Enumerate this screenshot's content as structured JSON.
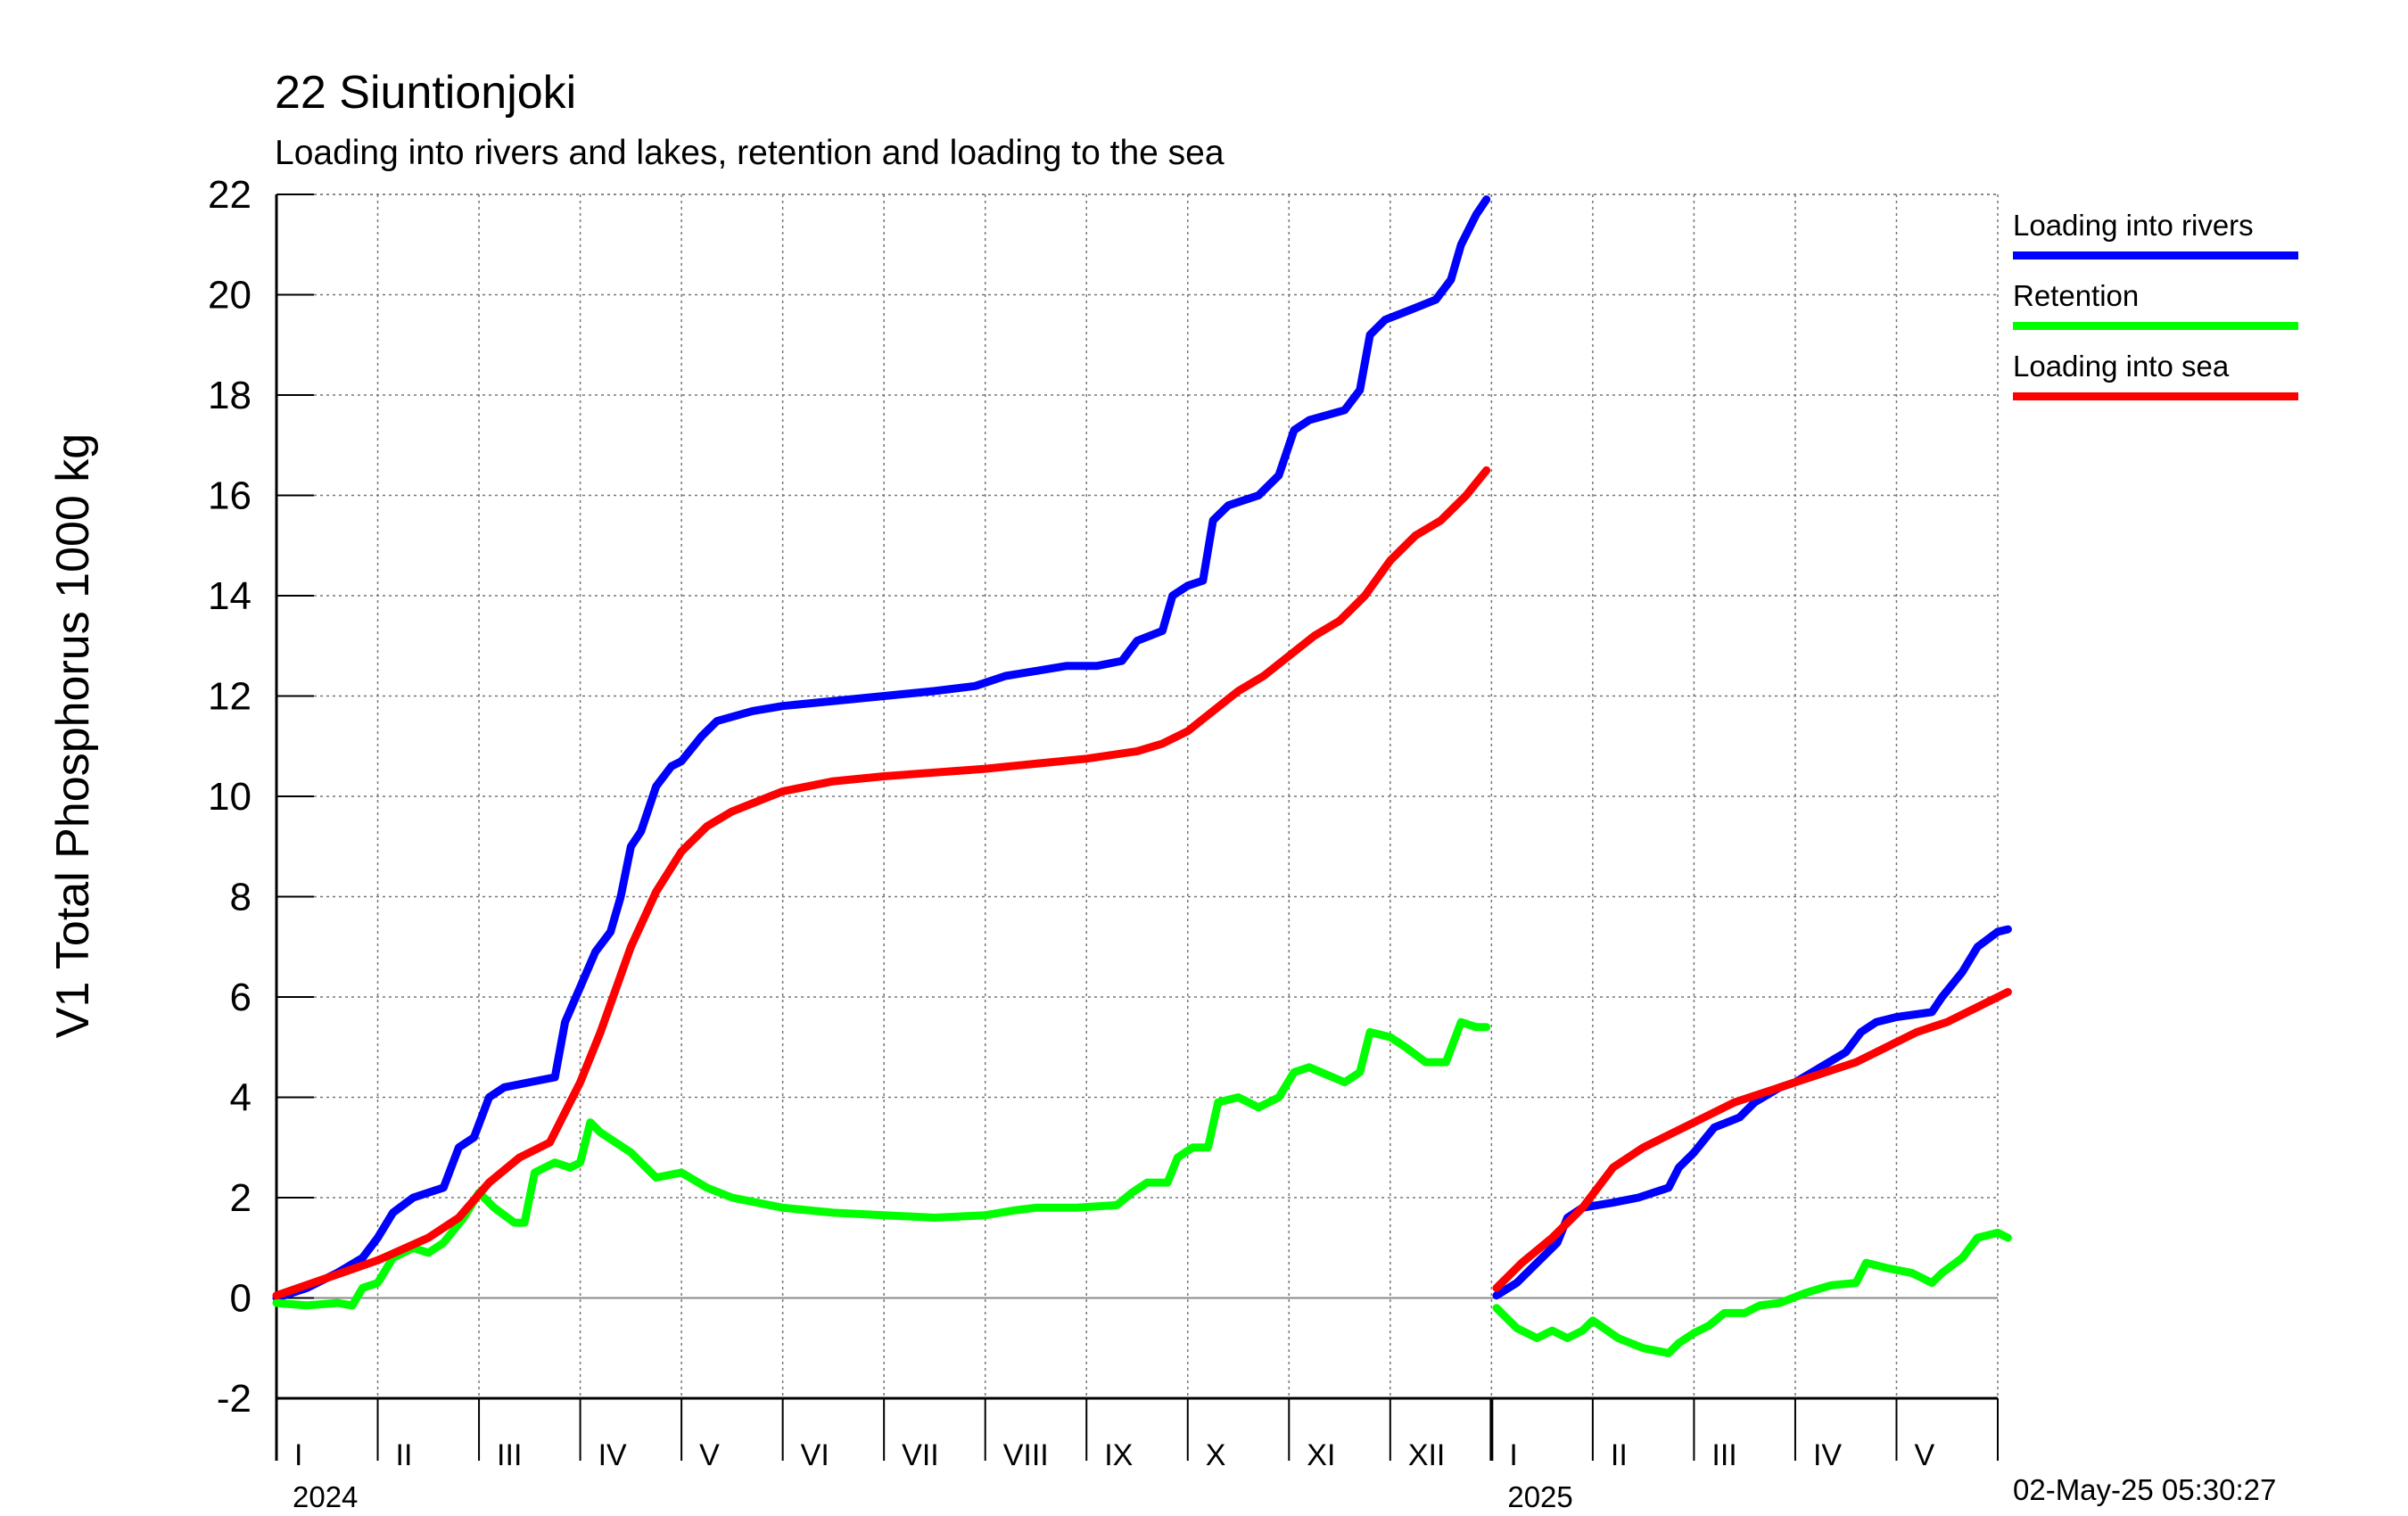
{
  "title": "22 Siuntionjoki",
  "subtitle": "Loading into rivers and lakes, retention and loading to the sea",
  "timestamp": "02-May-25 05:30:27",
  "chart_data": {
    "type": "line",
    "ylabel": "V1 Total Phosphorus 1000 kg",
    "ylim": [
      -2,
      22
    ],
    "yticks": [
      -2,
      0,
      2,
      4,
      6,
      8,
      10,
      12,
      14,
      16,
      18,
      20,
      22
    ],
    "grid": true,
    "legend_position": "right",
    "months": [
      "I",
      "II",
      "III",
      "IV",
      "V",
      "VI",
      "VII",
      "VIII",
      "IX",
      "X",
      "XI",
      "XII",
      "I",
      "II",
      "III",
      "IV",
      "V"
    ],
    "years": [
      {
        "label": "2024",
        "start_month": 0
      },
      {
        "label": "2025",
        "start_month": 12
      }
    ],
    "x_unit": "months since 2024-01-01",
    "series": [
      {
        "name": "Loading into rivers",
        "color": "#0000ff",
        "segments": [
          [
            [
              0,
              0
            ],
            [
              0.3,
              0.2
            ],
            [
              0.6,
              0.5
            ],
            [
              0.85,
              0.8
            ],
            [
              1.0,
              1.2
            ],
            [
              1.15,
              1.7
            ],
            [
              1.35,
              2.0
            ],
            [
              1.5,
              2.1
            ],
            [
              1.65,
              2.2
            ],
            [
              1.8,
              3.0
            ],
            [
              1.95,
              3.2
            ],
            [
              2.1,
              4.0
            ],
            [
              2.25,
              4.2
            ],
            [
              2.5,
              4.3
            ],
            [
              2.75,
              4.4
            ],
            [
              2.85,
              5.5
            ],
            [
              3.0,
              6.2
            ],
            [
              3.15,
              6.9
            ],
            [
              3.3,
              7.3
            ],
            [
              3.4,
              8.0
            ],
            [
              3.5,
              9.0
            ],
            [
              3.6,
              9.3
            ],
            [
              3.75,
              10.2
            ],
            [
              3.9,
              10.6
            ],
            [
              4.0,
              10.7
            ],
            [
              4.2,
              11.2
            ],
            [
              4.35,
              11.5
            ],
            [
              4.7,
              11.7
            ],
            [
              5.0,
              11.8
            ],
            [
              5.5,
              11.9
            ],
            [
              6.0,
              12.0
            ],
            [
              6.5,
              12.1
            ],
            [
              6.9,
              12.2
            ],
            [
              7.2,
              12.4
            ],
            [
              7.5,
              12.5
            ],
            [
              7.8,
              12.6
            ],
            [
              8.1,
              12.6
            ],
            [
              8.35,
              12.7
            ],
            [
              8.5,
              13.1
            ],
            [
              8.75,
              13.3
            ],
            [
              8.85,
              14.0
            ],
            [
              9.0,
              14.2
            ],
            [
              9.15,
              14.3
            ],
            [
              9.25,
              15.5
            ],
            [
              9.4,
              15.8
            ],
            [
              9.7,
              16.0
            ],
            [
              9.9,
              16.4
            ],
            [
              10.05,
              17.3
            ],
            [
              10.2,
              17.5
            ],
            [
              10.55,
              17.7
            ],
            [
              10.7,
              18.1
            ],
            [
              10.8,
              19.2
            ],
            [
              10.95,
              19.5
            ],
            [
              11.2,
              19.7
            ],
            [
              11.45,
              19.9
            ],
            [
              11.6,
              20.3
            ],
            [
              11.7,
              21.0
            ],
            [
              11.85,
              21.6
            ],
            [
              11.95,
              21.9
            ]
          ],
          [
            [
              12.05,
              0.05
            ],
            [
              12.25,
              0.3
            ],
            [
              12.45,
              0.7
            ],
            [
              12.65,
              1.1
            ],
            [
              12.75,
              1.6
            ],
            [
              12.9,
              1.8
            ],
            [
              13.2,
              1.9
            ],
            [
              13.45,
              2.0
            ],
            [
              13.75,
              2.2
            ],
            [
              13.85,
              2.6
            ],
            [
              14.0,
              2.9
            ],
            [
              14.2,
              3.4
            ],
            [
              14.45,
              3.6
            ],
            [
              14.6,
              3.9
            ],
            [
              14.85,
              4.2
            ],
            [
              15.0,
              4.3
            ],
            [
              15.25,
              4.6
            ],
            [
              15.5,
              4.9
            ],
            [
              15.65,
              5.3
            ],
            [
              15.8,
              5.5
            ],
            [
              16.0,
              5.6
            ],
            [
              16.35,
              5.7
            ],
            [
              16.45,
              6.0
            ],
            [
              16.65,
              6.5
            ],
            [
              16.8,
              7.0
            ],
            [
              17.0,
              7.3
            ],
            [
              17.1,
              7.35
            ]
          ]
        ]
      },
      {
        "name": "Retention",
        "color": "#00ff00",
        "segments": [
          [
            [
              0,
              -0.1
            ],
            [
              0.3,
              -0.15
            ],
            [
              0.6,
              -0.1
            ],
            [
              0.75,
              -0.15
            ],
            [
              0.85,
              0.2
            ],
            [
              1.0,
              0.3
            ],
            [
              1.15,
              0.8
            ],
            [
              1.35,
              1.0
            ],
            [
              1.5,
              0.9
            ],
            [
              1.65,
              1.1
            ],
            [
              1.85,
              1.6
            ],
            [
              2.0,
              2.1
            ],
            [
              2.15,
              1.8
            ],
            [
              2.35,
              1.5
            ],
            [
              2.45,
              1.5
            ],
            [
              2.55,
              2.5
            ],
            [
              2.75,
              2.7
            ],
            [
              2.9,
              2.6
            ],
            [
              3.0,
              2.7
            ],
            [
              3.1,
              3.5
            ],
            [
              3.2,
              3.3
            ],
            [
              3.5,
              2.9
            ],
            [
              3.75,
              2.4
            ],
            [
              4.0,
              2.5
            ],
            [
              4.25,
              2.2
            ],
            [
              4.5,
              2.0
            ],
            [
              5.0,
              1.8
            ],
            [
              5.5,
              1.7
            ],
            [
              6.0,
              1.65
            ],
            [
              6.5,
              1.6
            ],
            [
              7.0,
              1.65
            ],
            [
              7.3,
              1.75
            ],
            [
              7.5,
              1.8
            ],
            [
              7.9,
              1.8
            ],
            [
              8.3,
              1.85
            ],
            [
              8.45,
              2.1
            ],
            [
              8.6,
              2.3
            ],
            [
              8.8,
              2.3
            ],
            [
              8.9,
              2.8
            ],
            [
              9.05,
              3.0
            ],
            [
              9.2,
              3.0
            ],
            [
              9.3,
              3.9
            ],
            [
              9.5,
              4.0
            ],
            [
              9.7,
              3.8
            ],
            [
              9.9,
              4.0
            ],
            [
              10.05,
              4.5
            ],
            [
              10.2,
              4.6
            ],
            [
              10.55,
              4.3
            ],
            [
              10.7,
              4.5
            ],
            [
              10.8,
              5.3
            ],
            [
              11.0,
              5.2
            ],
            [
              11.15,
              5.0
            ],
            [
              11.35,
              4.7
            ],
            [
              11.55,
              4.7
            ],
            [
              11.7,
              5.5
            ],
            [
              11.85,
              5.4
            ],
            [
              11.95,
              5.4
            ]
          ],
          [
            [
              12.05,
              -0.2
            ],
            [
              12.25,
              -0.6
            ],
            [
              12.45,
              -0.8
            ],
            [
              12.6,
              -0.65
            ],
            [
              12.75,
              -0.8
            ],
            [
              12.9,
              -0.65
            ],
            [
              13.0,
              -0.45
            ],
            [
              13.25,
              -0.8
            ],
            [
              13.5,
              -1.0
            ],
            [
              13.75,
              -1.1
            ],
            [
              13.85,
              -0.9
            ],
            [
              14.0,
              -0.7
            ],
            [
              14.15,
              -0.55
            ],
            [
              14.3,
              -0.3
            ],
            [
              14.5,
              -0.3
            ],
            [
              14.65,
              -0.15
            ],
            [
              14.85,
              -0.1
            ],
            [
              15.1,
              0.1
            ],
            [
              15.35,
              0.25
            ],
            [
              15.6,
              0.3
            ],
            [
              15.7,
              0.7
            ],
            [
              15.9,
              0.6
            ],
            [
              16.15,
              0.5
            ],
            [
              16.35,
              0.3
            ],
            [
              16.45,
              0.5
            ],
            [
              16.65,
              0.8
            ],
            [
              16.8,
              1.2
            ],
            [
              17.0,
              1.3
            ],
            [
              17.1,
              1.2
            ]
          ]
        ]
      },
      {
        "name": "Loading into sea",
        "color": "#ff0000",
        "segments": [
          [
            [
              0,
              0.05
            ],
            [
              0.5,
              0.4
            ],
            [
              1.0,
              0.75
            ],
            [
              1.5,
              1.2
            ],
            [
              1.8,
              1.6
            ],
            [
              2.1,
              2.3
            ],
            [
              2.4,
              2.8
            ],
            [
              2.7,
              3.1
            ],
            [
              3.0,
              4.3
            ],
            [
              3.2,
              5.3
            ],
            [
              3.5,
              7.0
            ],
            [
              3.75,
              8.1
            ],
            [
              4.0,
              8.9
            ],
            [
              4.25,
              9.4
            ],
            [
              4.5,
              9.7
            ],
            [
              5.0,
              10.1
            ],
            [
              5.5,
              10.3
            ],
            [
              6.0,
              10.4
            ],
            [
              7.0,
              10.55
            ],
            [
              7.5,
              10.65
            ],
            [
              8.0,
              10.75
            ],
            [
              8.5,
              10.9
            ],
            [
              8.75,
              11.05
            ],
            [
              9.0,
              11.3
            ],
            [
              9.25,
              11.7
            ],
            [
              9.5,
              12.1
            ],
            [
              9.75,
              12.4
            ],
            [
              10.0,
              12.8
            ],
            [
              10.25,
              13.2
            ],
            [
              10.5,
              13.5
            ],
            [
              10.75,
              14.0
            ],
            [
              11.0,
              14.7
            ],
            [
              11.25,
              15.2
            ],
            [
              11.5,
              15.5
            ],
            [
              11.75,
              16.0
            ],
            [
              11.95,
              16.5
            ]
          ],
          [
            [
              12.05,
              0.2
            ],
            [
              12.3,
              0.7
            ],
            [
              12.6,
              1.2
            ],
            [
              12.9,
              1.8
            ],
            [
              13.2,
              2.6
            ],
            [
              13.5,
              3.0
            ],
            [
              13.8,
              3.3
            ],
            [
              14.1,
              3.6
            ],
            [
              14.4,
              3.9
            ],
            [
              14.7,
              4.1
            ],
            [
              15.0,
              4.3
            ],
            [
              15.3,
              4.5
            ],
            [
              15.6,
              4.7
            ],
            [
              15.9,
              5.0
            ],
            [
              16.2,
              5.3
            ],
            [
              16.5,
              5.5
            ],
            [
              16.8,
              5.8
            ],
            [
              17.1,
              6.1
            ]
          ]
        ]
      }
    ]
  }
}
